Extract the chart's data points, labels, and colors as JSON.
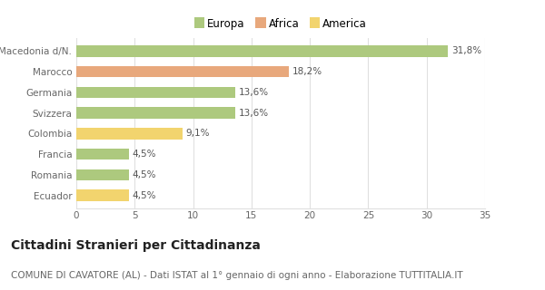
{
  "categories": [
    "Macedonia d/N.",
    "Marocco",
    "Germania",
    "Svizzera",
    "Colombia",
    "Francia",
    "Romania",
    "Ecuador"
  ],
  "values": [
    31.8,
    18.2,
    13.6,
    13.6,
    9.1,
    4.5,
    4.5,
    4.5
  ],
  "labels": [
    "31,8%",
    "18,2%",
    "13,6%",
    "13,6%",
    "9,1%",
    "4,5%",
    "4,5%",
    "4,5%"
  ],
  "colors": [
    "#adc97e",
    "#e8a87c",
    "#adc97e",
    "#adc97e",
    "#f2d46e",
    "#adc97e",
    "#adc97e",
    "#f2d46e"
  ],
  "legend_labels": [
    "Europa",
    "Africa",
    "America"
  ],
  "legend_colors": [
    "#adc97e",
    "#e8a87c",
    "#f2d46e"
  ],
  "xlim": [
    0,
    35
  ],
  "xticks": [
    0,
    5,
    10,
    15,
    20,
    25,
    30,
    35
  ],
  "title": "Cittadini Stranieri per Cittadinanza",
  "subtitle": "COMUNE DI CAVATORE (AL) - Dati ISTAT al 1° gennaio di ogni anno - Elaborazione TUTTITALIA.IT",
  "title_fontsize": 10,
  "subtitle_fontsize": 7.5,
  "bg_color": "#ffffff",
  "grid_color": "#e0e0e0",
  "label_color": "#666666",
  "bar_label_color": "#555555"
}
